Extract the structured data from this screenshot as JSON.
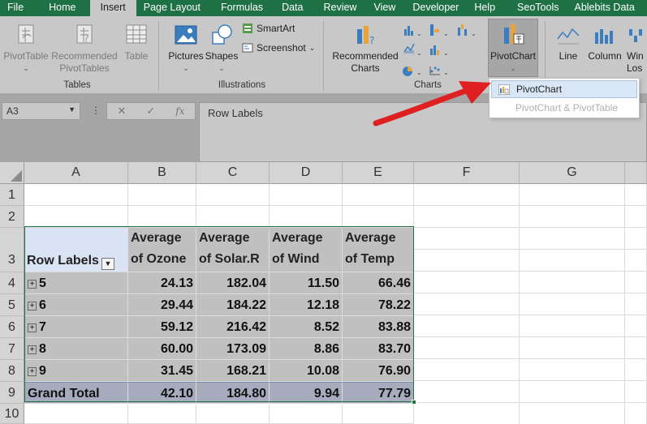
{
  "tabs": [
    "File",
    "Home",
    "Insert",
    "Page Layout",
    "Formulas",
    "Data",
    "Review",
    "View",
    "Developer",
    "Help",
    "SeoTools",
    "Ablebits Data"
  ],
  "ribbon": {
    "tables": {
      "group_label": "Tables",
      "pivottable": "PivotTable",
      "recommended_pivot_line1": "Recommended",
      "recommended_pivot_line2": "PivotTables",
      "table": "Table"
    },
    "illustrations": {
      "group_label": "Illustrations",
      "pictures": "Pictures",
      "shapes": "Shapes",
      "smartart": "SmartArt",
      "screenshot": "Screenshot"
    },
    "charts": {
      "group_label": "Charts",
      "recommended_charts_line1": "Recommended",
      "recommended_charts_line2": "Charts",
      "pivotchart": "PivotChart"
    },
    "sparklines": {
      "line": "Line",
      "column": "Column",
      "winloss_line1": "Win",
      "winloss_line2": "Los"
    }
  },
  "dropdown": {
    "items": [
      "PivotChart",
      "PivotChart & PivotTable"
    ]
  },
  "formula_bar": {
    "name_box": "A3",
    "content": "Row Labels",
    "cancel": "✕",
    "enter": "✓",
    "fx": "fx"
  },
  "grid": {
    "columns": [
      "A",
      "B",
      "C",
      "D",
      "E",
      "F",
      "G"
    ],
    "rows": [
      "1",
      "2",
      "3",
      "4",
      "5",
      "6",
      "7",
      "8",
      "9",
      "10"
    ],
    "header": {
      "row_labels": "Row Labels",
      "b_line1": "Average",
      "b_line2": "of Ozone",
      "c_line1": "Average",
      "c_line2": "of Solar.R",
      "d_line1": "Average",
      "d_line2": "of Wind",
      "e_line1": "Average",
      "e_line2": "of Temp"
    },
    "data": [
      {
        "label": "5",
        "ozone": "24.13",
        "solar": "182.04",
        "wind": "11.50",
        "temp": "66.46"
      },
      {
        "label": "6",
        "ozone": "29.44",
        "solar": "184.22",
        "wind": "12.18",
        "temp": "78.22"
      },
      {
        "label": "7",
        "ozone": "59.12",
        "solar": "216.42",
        "wind": "8.52",
        "temp": "83.88"
      },
      {
        "label": "8",
        "ozone": "60.00",
        "solar": "173.09",
        "wind": "8.86",
        "temp": "83.70"
      },
      {
        "label": "9",
        "ozone": "31.45",
        "solar": "168.21",
        "wind": "10.08",
        "temp": "76.90"
      }
    ],
    "grand_total": {
      "label": "Grand Total",
      "ozone": "42.10",
      "solar": "184.80",
      "wind": "9.94",
      "temp": "77.79"
    }
  },
  "colors": {
    "ribbon_tab_bar": "#1e7145",
    "ribbon_bg": "#c8c8c8",
    "pivot_header": "#dae3f3",
    "pivot_body": "#c0c0c0",
    "pivot_total": "#a6acbd",
    "arrow": "#e02020"
  }
}
